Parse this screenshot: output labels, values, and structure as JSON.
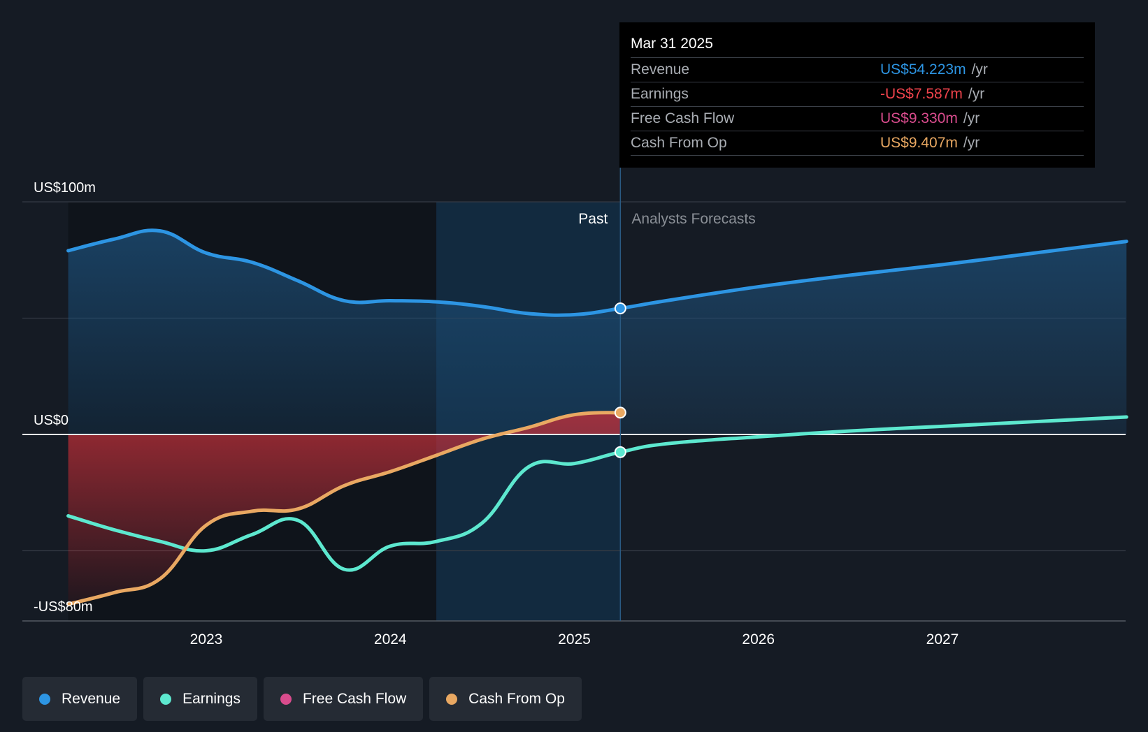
{
  "colors": {
    "revenue": "#2d95e3",
    "earnings": "#5de8cf",
    "free_cash_flow": "#d94c8d",
    "cash_from_op": "#e9a862",
    "negative_fill": "#c0303a",
    "background": "#151b24"
  },
  "tooltip": {
    "date": "Mar 31 2025",
    "rows": [
      {
        "label": "Revenue",
        "value": "US$54.223m",
        "unit": "/yr",
        "color": "#2d95e3"
      },
      {
        "label": "Earnings",
        "value": "-US$7.587m",
        "unit": "/yr",
        "color": "#f0434c"
      },
      {
        "label": "Free Cash Flow",
        "value": "US$9.330m",
        "unit": "/yr",
        "color": "#d94c8d"
      },
      {
        "label": "Cash From Op",
        "value": "US$9.407m",
        "unit": "/yr",
        "color": "#e9a862"
      }
    ]
  },
  "legend": [
    {
      "label": "Revenue",
      "color": "#2d95e3"
    },
    {
      "label": "Earnings",
      "color": "#5de8cf"
    },
    {
      "label": "Free Cash Flow",
      "color": "#d94c8d"
    },
    {
      "label": "Cash From Op",
      "color": "#e9a862"
    }
  ],
  "chart_data": {
    "type": "line",
    "past_label": "Past",
    "forecast_label": "Analysts Forecasts",
    "y_tick_labels": [
      "US$100m",
      "US$0",
      "-US$80m"
    ],
    "x_tick_labels": [
      "2023",
      "2024",
      "2025",
      "2026",
      "2027"
    ],
    "x_ticks": [
      2023,
      2024,
      2025,
      2026,
      2027
    ],
    "ylim": [
      -80,
      100
    ],
    "xlim": [
      2022.0,
      2028.0
    ],
    "y_gridlines": [
      100,
      50,
      0,
      -50
    ],
    "past_end": 2025.25,
    "highlight_start": 2024.25,
    "series": [
      {
        "name": "Revenue",
        "color": "#2d95e3",
        "points": [
          [
            2022.25,
            79
          ],
          [
            2022.5,
            84
          ],
          [
            2022.75,
            87.5
          ],
          [
            2023.0,
            78
          ],
          [
            2023.25,
            74
          ],
          [
            2023.5,
            66
          ],
          [
            2023.75,
            57.5
          ],
          [
            2024.0,
            57.5
          ],
          [
            2024.25,
            57
          ],
          [
            2024.5,
            55
          ],
          [
            2024.75,
            52
          ],
          [
            2025.0,
            51.5
          ],
          [
            2025.25,
            54.2
          ],
          [
            2025.5,
            57.5
          ],
          [
            2026.0,
            63.5
          ],
          [
            2026.5,
            68.5
          ],
          [
            2027.0,
            73
          ],
          [
            2027.5,
            78
          ],
          [
            2028.0,
            83
          ]
        ]
      },
      {
        "name": "Earnings",
        "color": "#5de8cf",
        "points": [
          [
            2022.25,
            -35
          ],
          [
            2022.5,
            -41
          ],
          [
            2022.75,
            -46
          ],
          [
            2023.0,
            -50
          ],
          [
            2023.25,
            -43
          ],
          [
            2023.5,
            -37
          ],
          [
            2023.75,
            -58
          ],
          [
            2024.0,
            -48
          ],
          [
            2024.25,
            -46
          ],
          [
            2024.5,
            -38
          ],
          [
            2024.75,
            -14
          ],
          [
            2025.0,
            -12.5
          ],
          [
            2025.25,
            -7.6
          ],
          [
            2025.5,
            -4
          ],
          [
            2026.0,
            -1
          ],
          [
            2026.5,
            1.5
          ],
          [
            2027.0,
            3.5
          ],
          [
            2027.5,
            5.5
          ],
          [
            2028.0,
            7.5
          ]
        ]
      },
      {
        "name": "Cash From Op",
        "color": "#e9a862",
        "points": [
          [
            2022.25,
            -73
          ],
          [
            2022.5,
            -68
          ],
          [
            2022.75,
            -62
          ],
          [
            2023.0,
            -39
          ],
          [
            2023.25,
            -33
          ],
          [
            2023.5,
            -32
          ],
          [
            2023.75,
            -22
          ],
          [
            2024.0,
            -16
          ],
          [
            2024.25,
            -9
          ],
          [
            2024.5,
            -2
          ],
          [
            2024.75,
            3
          ],
          [
            2025.0,
            8.5
          ],
          [
            2025.25,
            9.4
          ]
        ]
      }
    ]
  }
}
